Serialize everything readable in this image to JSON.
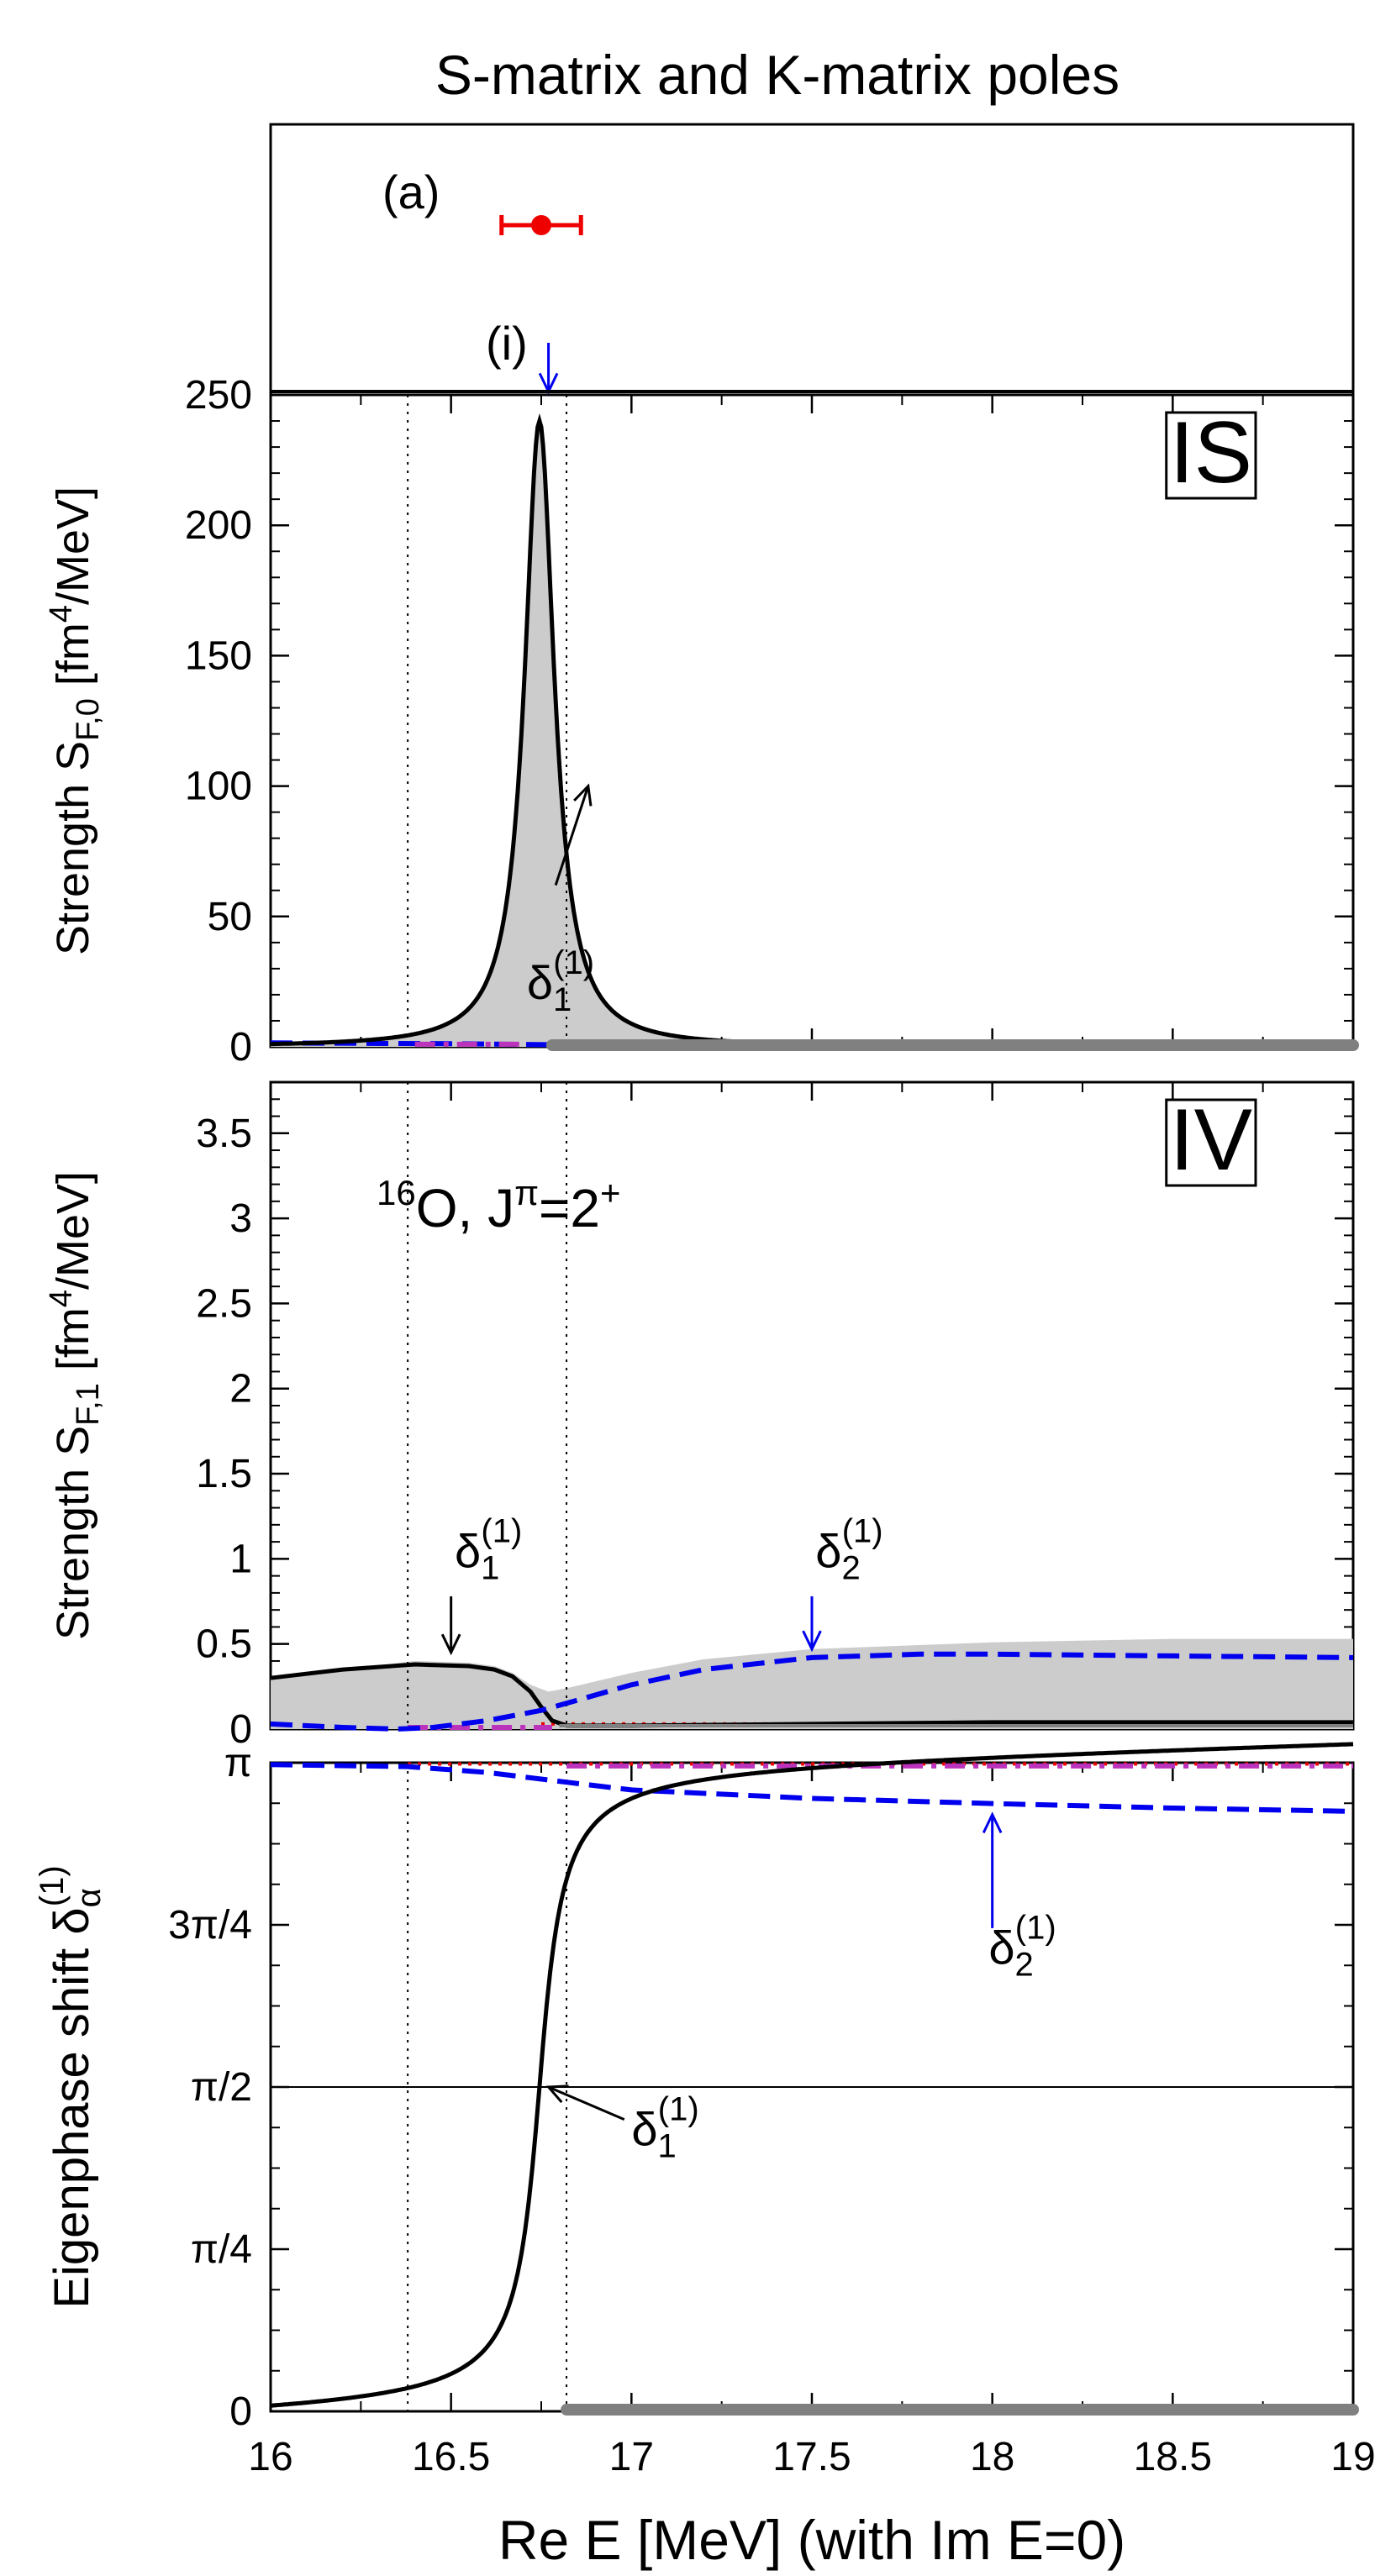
{
  "title": "S-matrix and K-matrix poles",
  "x_axis": {
    "label": "Re E [MeV] (with Im E=0)",
    "min": 16,
    "max": 19,
    "ticks": [
      16,
      16.5,
      17,
      17.5,
      18,
      18.5,
      19
    ],
    "tick_labels": [
      "16",
      "16.5",
      "17",
      "17.5",
      "18",
      "18.5",
      "19"
    ]
  },
  "colors": {
    "black": "#000000",
    "blue": "#0000ee",
    "red": "#ee0000",
    "magenta": "#bb33bb",
    "gray_fill": "#cccccc",
    "gray_band": "#808080"
  },
  "chart_data": [
    {
      "type": "scatter",
      "panel": "poles",
      "annotations": {
        "a": "(a)",
        "i": "(i)"
      },
      "s_matrix_pole": {
        "x": 16.75,
        "xerr_low": 16.64,
        "xerr_high": 16.86,
        "color": "#ee0000"
      },
      "k_matrix_pole": {
        "x": 16.77,
        "color": "#0000ee"
      }
    },
    {
      "type": "line",
      "panel": "IS",
      "tag": "IS",
      "ylabel_main": "Strength S",
      "ylabel_sub": "F,0",
      "ylabel_pre": " [fm",
      "ylabel_sup": "4",
      "ylabel_post": "/MeV]",
      "ylim": [
        0,
        250
      ],
      "yticks": [
        0,
        50,
        100,
        150,
        200,
        250
      ],
      "ytick_labels": [
        "0",
        "50",
        "100",
        "150",
        "200",
        "250"
      ],
      "vlines": [
        16.38,
        16.82
      ],
      "annotation": {
        "base": "δ",
        "sub": "1",
        "sup": "(1)",
        "x": 16.79,
        "y": 55,
        "arrow_to": [
          16.88,
          100
        ]
      },
      "series": [
        {
          "role": "total",
          "style": "gray-fill",
          "peak_x": 16.745,
          "peak_y": 240,
          "width": 0.1
        },
        {
          "role": "delta1",
          "style": "black-solid",
          "peak_x": 16.745,
          "peak_y": 240,
          "width": 0.1
        },
        {
          "role": "delta2",
          "style": "blue-dashed",
          "x": [
            16,
            16.5,
            17,
            19
          ],
          "y": [
            1.5,
            1.2,
            0.5,
            0.3
          ]
        },
        {
          "role": "delta3",
          "style": "magenta-dashdot",
          "x": [
            16.4,
            16.7
          ],
          "y": [
            1.0,
            1.0
          ]
        },
        {
          "role": "threshold",
          "style": "gray-band",
          "x": [
            16.78,
            19
          ],
          "y": [
            0,
            0
          ]
        }
      ]
    },
    {
      "type": "line",
      "panel": "IV",
      "tag": "IV",
      "ylabel_main": "Strength S",
      "ylabel_sub": "F,1",
      "ylabel_pre": " [fm",
      "ylabel_sup": "4",
      "ylabel_post": "/MeV]",
      "ylim": [
        0,
        3.8
      ],
      "yticks": [
        0,
        0.5,
        1,
        1.5,
        2,
        2.5,
        3,
        3.5
      ],
      "ytick_labels": [
        "0",
        "0.5",
        "1",
        "1.5",
        "2",
        "2.5",
        "3",
        "3.5"
      ],
      "vlines": [
        16.38,
        16.82
      ],
      "nucleus": {
        "mass": "16",
        "elem": "O, J",
        "pi": "π",
        "eq": "=2",
        "sup": "+"
      },
      "annotations": [
        {
          "base": "δ",
          "sub": "1",
          "sup": "(1)",
          "x": 16.5,
          "y": 0.95,
          "arrow_to": [
            16.5,
            0.45
          ],
          "color": "#000000"
        },
        {
          "base": "δ",
          "sub": "2",
          "sup": "(1)",
          "x": 17.5,
          "y": 0.95,
          "arrow_to": [
            17.5,
            0.47
          ],
          "color": "#0000ee"
        }
      ],
      "series": [
        {
          "role": "total",
          "style": "gray-fill",
          "x": [
            16,
            16.2,
            16.4,
            16.55,
            16.62,
            16.67,
            16.72,
            16.77,
            16.82,
            16.9,
            17.0,
            17.2,
            17.5,
            18.0,
            18.5,
            19.0
          ],
          "y": [
            0.3,
            0.35,
            0.4,
            0.39,
            0.37,
            0.33,
            0.26,
            0.22,
            0.24,
            0.28,
            0.33,
            0.41,
            0.47,
            0.51,
            0.53,
            0.53
          ]
        },
        {
          "role": "delta1",
          "style": "black-solid",
          "x": [
            16,
            16.2,
            16.4,
            16.55,
            16.62,
            16.67,
            16.72,
            16.75,
            16.78,
            16.82,
            17.0,
            17.5,
            18.0,
            19.0
          ],
          "y": [
            0.3,
            0.35,
            0.38,
            0.37,
            0.35,
            0.31,
            0.22,
            0.13,
            0.05,
            0.02,
            0.02,
            0.03,
            0.04,
            0.04
          ]
        },
        {
          "role": "delta2",
          "style": "blue-dashed",
          "x": [
            16,
            16.2,
            16.35,
            16.45,
            16.6,
            16.75,
            16.85,
            17.0,
            17.2,
            17.5,
            17.8,
            18.0,
            18.5,
            19.0
          ],
          "y": [
            0.03,
            0.01,
            0.0,
            0.01,
            0.05,
            0.11,
            0.17,
            0.26,
            0.35,
            0.42,
            0.44,
            0.44,
            0.43,
            0.42
          ]
        },
        {
          "role": "delta3",
          "style": "magenta-dashdot",
          "x": [
            16.38,
            16.78
          ],
          "y": [
            0.01,
            0.01
          ]
        },
        {
          "role": "delta4",
          "style": "red-dotted",
          "x": [
            16.75,
            19
          ],
          "y": [
            0.03,
            0.03
          ]
        }
      ]
    },
    {
      "type": "line",
      "panel": "eigenphase",
      "ylabel_main": "Eigenphase shift δ",
      "ylabel_sub": "α",
      "ylabel_sup": "(1)",
      "ylim_pi_units": [
        0,
        1
      ],
      "yticks_pi_units": [
        0,
        0.25,
        0.5,
        0.75,
        1
      ],
      "ytick_labels": [
        "0",
        "π/4",
        "π/2",
        "3π/4",
        "π"
      ],
      "vlines": [
        16.38,
        16.82
      ],
      "hline_pi_units": 0.5,
      "annotations": [
        {
          "base": "δ",
          "sub": "2",
          "sup": "(1)",
          "x": 18.05,
          "y": 0.69,
          "arrow_to": [
            18.0,
            0.92
          ],
          "color": "#0000ee"
        },
        {
          "base": "δ",
          "sub": "1",
          "sup": "(1)",
          "x": 17.0,
          "y": 0.4,
          "arrow_to": [
            16.77,
            0.5
          ],
          "color": "#000000"
        }
      ],
      "series": [
        {
          "role": "delta1",
          "style": "black-solid",
          "arctan_center": 16.745,
          "arctan_halfwidth": 0.048,
          "tail_slope_pi_per_mev": 0.0157
        },
        {
          "role": "delta2",
          "style": "blue-dashed",
          "x": [
            16,
            16.38,
            16.6,
            16.82,
            17.0,
            17.5,
            18.0,
            18.5,
            19.0
          ],
          "y_pi_units": [
            0.997,
            0.994,
            0.985,
            0.97,
            0.958,
            0.945,
            0.937,
            0.93,
            0.925
          ]
        },
        {
          "role": "delta3",
          "style": "magenta-dashdot",
          "x": [
            16.82,
            19
          ],
          "y_pi_units": [
            0.995,
            0.995
          ]
        },
        {
          "role": "delta4",
          "style": "red-dotted",
          "x": [
            16.38,
            19
          ],
          "y_pi_units": [
            0.998,
            0.998
          ]
        },
        {
          "role": "threshold",
          "style": "gray-band",
          "x": [
            16.82,
            19
          ],
          "y_pi_units": [
            0,
            0
          ]
        }
      ]
    }
  ]
}
